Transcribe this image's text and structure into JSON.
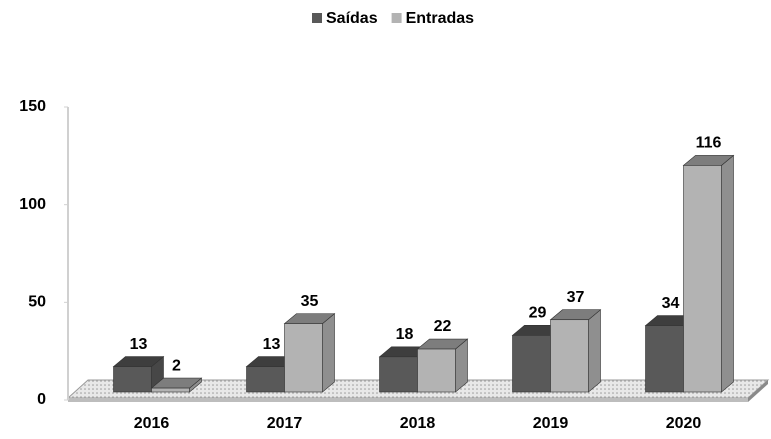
{
  "chart_data": {
    "type": "bar3d",
    "categories": [
      "2016",
      "2017",
      "2018",
      "2019",
      "2020"
    ],
    "series": [
      {
        "name": "Saídas",
        "color": "#595959",
        "values": [
          13,
          13,
          18,
          29,
          34
        ]
      },
      {
        "name": "Entradas",
        "color": "#b3b3b3",
        "values": [
          2,
          35,
          22,
          37,
          116
        ]
      }
    ],
    "ylim": [
      0,
      150
    ],
    "yticks": [
      0,
      50,
      100,
      150
    ],
    "legend": "top"
  }
}
